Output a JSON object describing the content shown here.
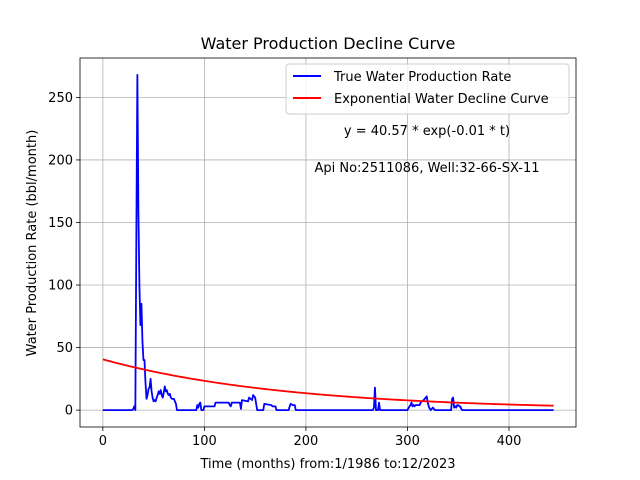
{
  "chart_data": {
    "type": "line",
    "title": "Water Production Decline Curve",
    "xlabel": "Time (months) from:1/1986 to:12/2023",
    "ylabel": "Water Production Rate (bbl/month)",
    "xlim": [
      -22.5,
      466
    ],
    "ylim": [
      -13.5,
      281.5
    ],
    "x_ticks": [
      0,
      100,
      200,
      300,
      400
    ],
    "y_ticks": [
      0,
      50,
      100,
      150,
      200,
      250
    ],
    "grid": true,
    "legend_position": "top-right",
    "annotations": [
      "y = 40.57 * exp(-0.01 * t)",
      "Api No:2511086, Well:32-66-SX-11"
    ],
    "series": [
      {
        "name": "True Water Production Rate",
        "color": "#0000ff",
        "points": [
          [
            0,
            0
          ],
          [
            29,
            0
          ],
          [
            30,
            1
          ],
          [
            31,
            3
          ],
          [
            32,
            0
          ],
          [
            33,
            140
          ],
          [
            34,
            268
          ],
          [
            35,
            160
          ],
          [
            36,
            100
          ],
          [
            37,
            68
          ],
          [
            38,
            85
          ],
          [
            39,
            55
          ],
          [
            40,
            40
          ],
          [
            41,
            40
          ],
          [
            42,
            22
          ],
          [
            43,
            9
          ],
          [
            44,
            12
          ],
          [
            45,
            17
          ],
          [
            46,
            18
          ],
          [
            47,
            25
          ],
          [
            48,
            15
          ],
          [
            49,
            10
          ],
          [
            50,
            7
          ],
          [
            51,
            8
          ],
          [
            52,
            7
          ],
          [
            53,
            10
          ],
          [
            54,
            12
          ],
          [
            55,
            15
          ],
          [
            56,
            13
          ],
          [
            57,
            16
          ],
          [
            58,
            12
          ],
          [
            59,
            10
          ],
          [
            60,
            14
          ],
          [
            61,
            19
          ],
          [
            62,
            15
          ],
          [
            63,
            16
          ],
          [
            64,
            13
          ],
          [
            65,
            12
          ],
          [
            66,
            13
          ],
          [
            67,
            10
          ],
          [
            68,
            9
          ],
          [
            70,
            9
          ],
          [
            72,
            5
          ],
          [
            73,
            0
          ],
          [
            92,
            0
          ],
          [
            93,
            4
          ],
          [
            94,
            2
          ],
          [
            95,
            5
          ],
          [
            96,
            6
          ],
          [
            97,
            0
          ],
          [
            99,
            0
          ],
          [
            100,
            3
          ],
          [
            110,
            3
          ],
          [
            111,
            6
          ],
          [
            124,
            6
          ],
          [
            125,
            4
          ],
          [
            126,
            3
          ],
          [
            127,
            6
          ],
          [
            135,
            6
          ],
          [
            136,
            1
          ],
          [
            137,
            8
          ],
          [
            143,
            7
          ],
          [
            144,
            10
          ],
          [
            147,
            8
          ],
          [
            148,
            12
          ],
          [
            150,
            10
          ],
          [
            151,
            5
          ],
          [
            152,
            0
          ],
          [
            158,
            0
          ],
          [
            159,
            5
          ],
          [
            166,
            4
          ],
          [
            167,
            3
          ],
          [
            170,
            3
          ],
          [
            171,
            0
          ],
          [
            183,
            0
          ],
          [
            184,
            3
          ],
          [
            185,
            5
          ],
          [
            187,
            4
          ],
          [
            189,
            4
          ],
          [
            190,
            0
          ],
          [
            266,
            0
          ],
          [
            267,
            2
          ],
          [
            268,
            18
          ],
          [
            269,
            0
          ],
          [
            271,
            0
          ],
          [
            272,
            6
          ],
          [
            273,
            0
          ],
          [
            300,
            0
          ],
          [
            302,
            3
          ],
          [
            303,
            4
          ],
          [
            304,
            6
          ],
          [
            305,
            3
          ],
          [
            306,
            4
          ],
          [
            307,
            3
          ],
          [
            308,
            4
          ],
          [
            312,
            4
          ],
          [
            313,
            6
          ],
          [
            314,
            7
          ],
          [
            316,
            8
          ],
          [
            317,
            9
          ],
          [
            318,
            10
          ],
          [
            319,
            11
          ],
          [
            320,
            6
          ],
          [
            321,
            3
          ],
          [
            322,
            1
          ],
          [
            323,
            0
          ],
          [
            324,
            1
          ],
          [
            325,
            2
          ],
          [
            326,
            1
          ],
          [
            327,
            0
          ],
          [
            343,
            0
          ],
          [
            344,
            9
          ],
          [
            345,
            10
          ],
          [
            346,
            2
          ],
          [
            347,
            3
          ],
          [
            348,
            2
          ],
          [
            349,
            4
          ],
          [
            350,
            4
          ],
          [
            351,
            3
          ],
          [
            352,
            3
          ],
          [
            353,
            1
          ],
          [
            354,
            0
          ],
          [
            444,
            0
          ]
        ]
      },
      {
        "name": "Exponential Water Decline Curve",
        "color": "#ff0000",
        "a": 40.57,
        "b": 0.0055,
        "x_start": 0,
        "x_end": 444
      }
    ]
  }
}
